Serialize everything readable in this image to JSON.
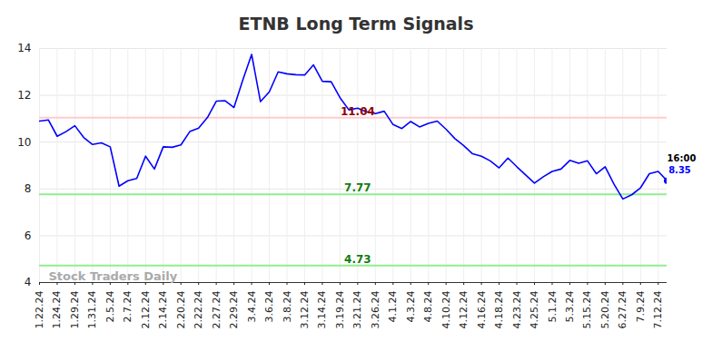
{
  "chart_data": {
    "type": "line",
    "title": "ETNB Long Term Signals",
    "categories": [
      "1.22.24",
      null,
      "1.24.24",
      null,
      "1.29.24",
      null,
      "1.31.24",
      null,
      "2.5.24",
      null,
      "2.7.24",
      null,
      "2.12.24",
      null,
      "2.14.24",
      null,
      "2.20.24",
      null,
      "2.22.24",
      null,
      "2.27.24",
      null,
      "2.29.24",
      null,
      "3.4.24",
      null,
      "3.6.24",
      null,
      "3.8.24",
      null,
      "3.12.24",
      null,
      "3.14.24",
      null,
      "3.19.24",
      null,
      "3.21.24",
      null,
      "3.26.24",
      null,
      "4.1.24",
      null,
      "4.3.24",
      null,
      "4.8.24",
      null,
      "4.10.24",
      null,
      "4.12.24",
      null,
      "4.16.24",
      null,
      "4.18.24",
      null,
      "4.23.24",
      null,
      "4.25.24",
      null,
      "5.1.24",
      null,
      "5.3.24",
      null,
      "5.15.24",
      null,
      "5.20.24",
      null,
      "6.27.24",
      null,
      "7.9.24",
      null,
      "7.12.24",
      null
    ],
    "values": [
      10.9,
      10.95,
      10.25,
      10.45,
      10.7,
      10.2,
      9.9,
      9.97,
      9.8,
      8.12,
      8.35,
      8.45,
      9.4,
      8.85,
      9.8,
      9.78,
      9.88,
      10.45,
      10.6,
      11.05,
      11.75,
      11.77,
      11.48,
      12.65,
      13.75,
      11.73,
      12.15,
      13.0,
      12.92,
      12.88,
      12.87,
      13.3,
      12.6,
      12.58,
      11.9,
      11.38,
      11.45,
      11.3,
      11.22,
      11.32,
      10.75,
      10.58,
      10.88,
      10.65,
      10.8,
      10.9,
      10.55,
      10.15,
      9.85,
      9.5,
      9.4,
      9.2,
      8.9,
      9.32,
      8.95,
      8.6,
      8.25,
      8.52,
      8.75,
      8.85,
      9.22,
      9.1,
      9.2,
      8.65,
      8.95,
      8.2,
      7.57,
      7.75,
      8.05,
      8.65,
      8.75,
      8.35
    ],
    "color": "#0000ff",
    "ylim": [
      4,
      14
    ],
    "yticks": [
      4,
      6,
      8,
      10,
      12,
      14
    ],
    "grid": true,
    "reference_lines": [
      {
        "value": 11.04,
        "color": "#ffcccc"
      },
      {
        "value": 7.77,
        "color": "#90ee90"
      },
      {
        "value": 4.73,
        "color": "#90ee90"
      }
    ],
    "annotations": [
      {
        "text": "16:00"
      }
    ],
    "watermark": "Stock Traders Daily"
  }
}
